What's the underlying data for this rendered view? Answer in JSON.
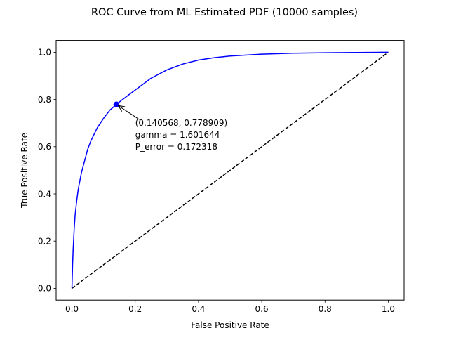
{
  "chart_data": {
    "type": "line",
    "title": "ROC Curve from ML Estimated PDF (10000 samples)",
    "xlabel": "False Positive Rate",
    "ylabel": "True Positive Rate",
    "xlim": [
      -0.05,
      1.05
    ],
    "ylim": [
      -0.05,
      1.05
    ],
    "xticks": [
      0.0,
      0.2,
      0.4,
      0.6,
      0.8,
      1.0
    ],
    "yticks": [
      0.0,
      0.2,
      0.4,
      0.6,
      0.8,
      1.0
    ],
    "xtick_labels": [
      "0.0",
      "0.2",
      "0.4",
      "0.6",
      "0.8",
      "1.0"
    ],
    "ytick_labels": [
      "0.0",
      "0.2",
      "0.4",
      "0.6",
      "0.8",
      "1.0"
    ],
    "grid": false,
    "series": [
      {
        "color": "#0000ff",
        "style": "solid",
        "x": [
          0.0,
          0.002,
          0.004,
          0.007,
          0.01,
          0.015,
          0.02,
          0.03,
          0.04,
          0.05,
          0.06,
          0.08,
          0.1,
          0.12,
          0.140568,
          0.16,
          0.18,
          0.2,
          0.25,
          0.3,
          0.35,
          0.4,
          0.45,
          0.5,
          0.6,
          0.7,
          0.8,
          0.9,
          1.0
        ],
        "y": [
          0.0,
          0.1,
          0.17,
          0.25,
          0.31,
          0.37,
          0.42,
          0.49,
          0.54,
          0.59,
          0.625,
          0.68,
          0.72,
          0.755,
          0.778909,
          0.8,
          0.82,
          0.84,
          0.89,
          0.925,
          0.95,
          0.967,
          0.977,
          0.984,
          0.992,
          0.996,
          0.998,
          0.999,
          1.0
        ]
      },
      {
        "color": "#000000",
        "style": "dashed",
        "x": [
          0.0,
          1.0
        ],
        "y": [
          0.0,
          1.0
        ]
      }
    ],
    "marker": {
      "x": 0.140568,
      "y": 0.778909,
      "color": "#0000ff"
    },
    "annotation": {
      "lines": [
        "(0.140568, 0.778909)",
        "gamma = 1.601644",
        "P_error = 0.172318"
      ],
      "text_anchor": {
        "x": 0.2,
        "y": 0.7
      }
    }
  }
}
